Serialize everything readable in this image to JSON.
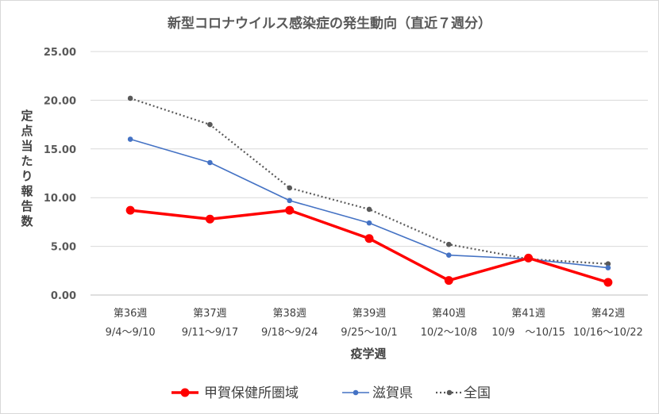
{
  "chart_data": {
    "type": "line",
    "title": "新型コロナウイルス感染症の発生動向（直近７週分）",
    "ylabel": "定点当たり報告数",
    "xlabel": "疫学週",
    "ylim": [
      0,
      25
    ],
    "yticks": [
      "0.00",
      "5.00",
      "10.00",
      "15.00",
      "20.00",
      "25.00"
    ],
    "grid": true,
    "legend_position": "bottom",
    "categories": [
      {
        "week": "第36週",
        "range": "9/4～9/10"
      },
      {
        "week": "第37週",
        "range": "9/11～9/17"
      },
      {
        "week": "第38週",
        "range": "9/18～9/24"
      },
      {
        "week": "第39週",
        "range": "9/25～10/1"
      },
      {
        "week": "第40週",
        "range": "10/2～10/8"
      },
      {
        "week": "第41週",
        "range": "10/9　～10/15"
      },
      {
        "week": "第42週",
        "range": "10/16～10/22"
      }
    ],
    "series": [
      {
        "name": "甲賀保健所圏域",
        "color": "#ff0000",
        "style": "solid-thick",
        "values": [
          8.7,
          7.8,
          8.7,
          5.8,
          1.5,
          3.8,
          1.3
        ]
      },
      {
        "name": "滋賀県",
        "color": "#4472c4",
        "style": "solid",
        "values": [
          16.0,
          13.6,
          9.7,
          7.4,
          4.1,
          3.7,
          2.8
        ]
      },
      {
        "name": "全国",
        "color": "#595959",
        "style": "dotted",
        "values": [
          20.2,
          17.5,
          11.0,
          8.8,
          5.2,
          3.7,
          3.2
        ]
      }
    ]
  }
}
